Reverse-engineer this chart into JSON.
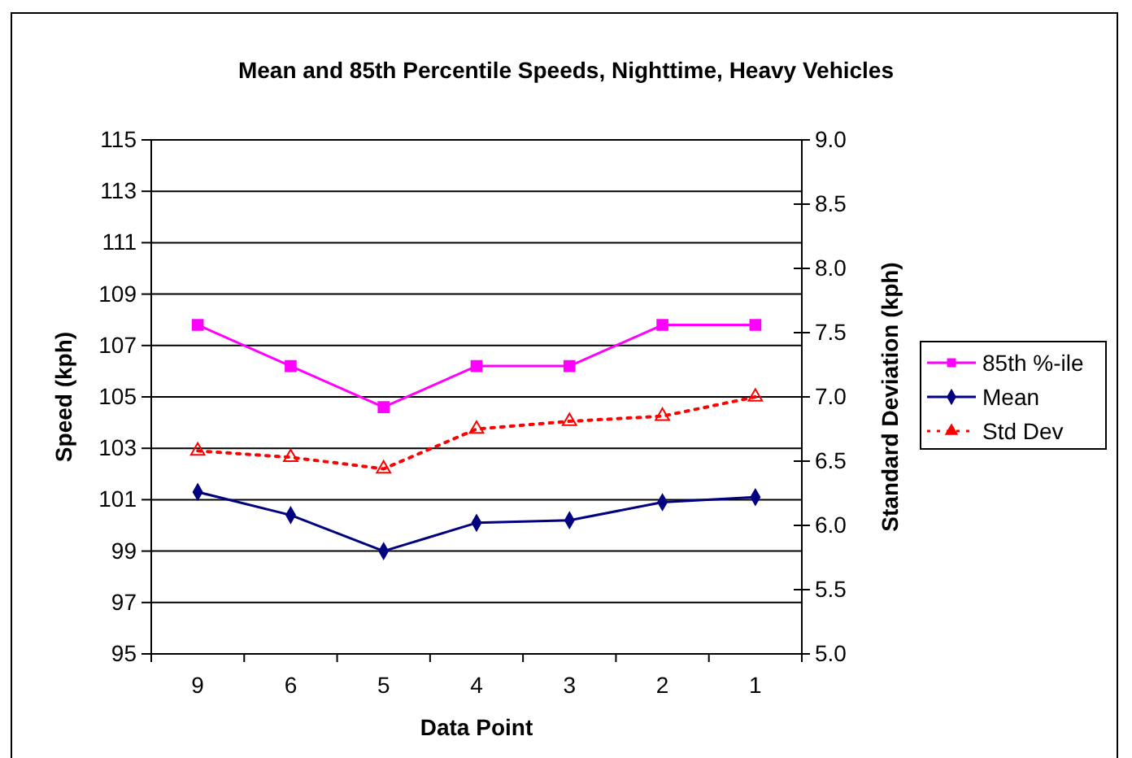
{
  "chart_data": {
    "type": "line",
    "title": "Mean and 85th Percentile Speeds, Nighttime, Heavy Vehicles",
    "xlabel": "Data Point",
    "ylabel": "Speed (kph)",
    "y2label": "Standard Deviation (kph)",
    "categories": [
      "9",
      "6",
      "5",
      "4",
      "3",
      "2",
      "1"
    ],
    "series": [
      {
        "name": "85th %-ile",
        "color": "#ff00ff",
        "marker": "square",
        "line_style": "solid",
        "values": [
          107.8,
          106.2,
          104.6,
          106.2,
          106.2,
          107.8,
          107.8
        ]
      },
      {
        "name": "Mean",
        "color": "#000080",
        "marker": "diamond",
        "line_style": "solid",
        "values": [
          101.3,
          100.4,
          99.0,
          100.1,
          100.2,
          100.9,
          101.1
        ]
      },
      {
        "name": "Std Dev",
        "color": "#ff0000",
        "marker": "triangle",
        "line_style": "dotted",
        "axis": "y2",
        "values": [
          6.58,
          6.53,
          6.44,
          6.75,
          6.81,
          6.85,
          7.0
        ]
      }
    ],
    "ylim": [
      95,
      115
    ],
    "yticks": [
      95,
      97,
      99,
      101,
      103,
      105,
      107,
      109,
      111,
      113,
      115
    ],
    "y2lim": [
      5,
      9
    ],
    "y2ticks": [
      {
        "value": 5,
        "label": "5.0"
      },
      5.5,
      {
        "value": 6,
        "label": "6.0"
      },
      6.5,
      {
        "value": 7,
        "label": "7.0"
      },
      7.5,
      {
        "value": 8,
        "label": "8.0"
      },
      8.5,
      {
        "value": 9,
        "label": "9.0"
      }
    ],
    "grid": "y",
    "legend": "right"
  }
}
